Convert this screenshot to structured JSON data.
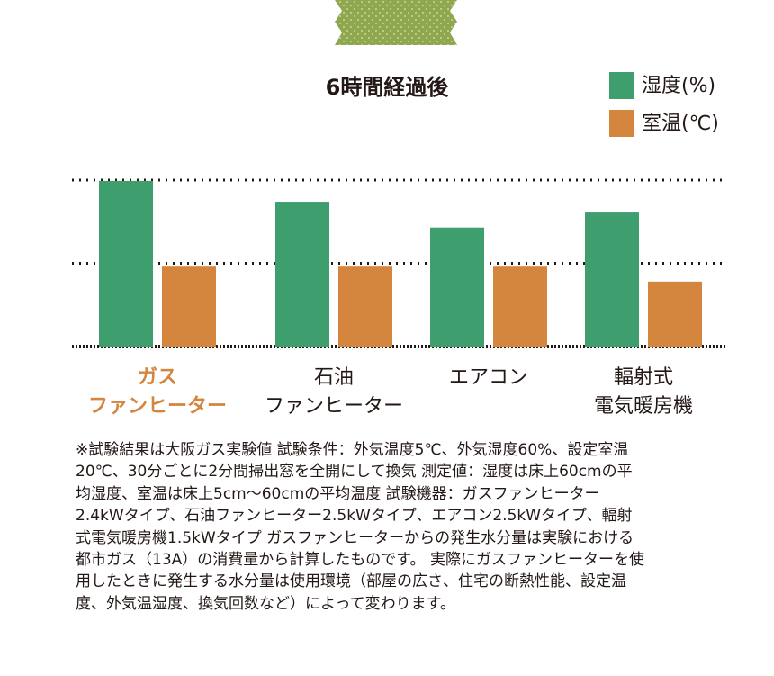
{
  "chart_data": {
    "type": "bar",
    "title": "6時間経過後",
    "categories": [
      "ガス\nファンヒーター",
      "石油\nファンヒーター",
      "エアコン",
      "輻射式\n電気暖房機"
    ],
    "category_colors": [
      "#d4853e",
      "#231815",
      "#231815",
      "#231815"
    ],
    "series": [
      {
        "name": "湿度(%)",
        "color": "#3f9e6e",
        "values": [
          1.99,
          1.74,
          1.43,
          1.61
        ]
      },
      {
        "name": "室温(℃)",
        "color": "#d4853e",
        "values": [
          0.96,
          0.96,
          0.96,
          0.78
        ]
      }
    ],
    "ylim": [
      0,
      2
    ],
    "yticks": [
      0,
      1,
      2
    ],
    "grid": true,
    "legend": "top-right"
  },
  "note": [
    "※試験結果は大阪ガス実験値 試験条件：外気温度5℃、外気湿度60%、設定室温",
    "20℃、30分ごとに2分間掃出窓を全開にして換気 測定値：湿度は床上60cmの平",
    "均湿度、室温は床上5cm～60cmの平均温度 試験機器：ガスファンヒーター",
    "2.4kWタイプ、石油ファンヒーター2.5kWタイプ、エアコン2.5kWタイプ、輻射",
    "式電気暖房機1.5kWタイプ ガスファンヒーターからの発生水分量は実験における",
    "都市ガス（13A）の消費量から計算したものです。 実際にガスファンヒーターを使",
    "用したときに発生する水分量は使用環境（部屋の広さ、住宅の断熱性能、設定温",
    "度、外気温湿度、換気回数など）によって変わります。"
  ]
}
